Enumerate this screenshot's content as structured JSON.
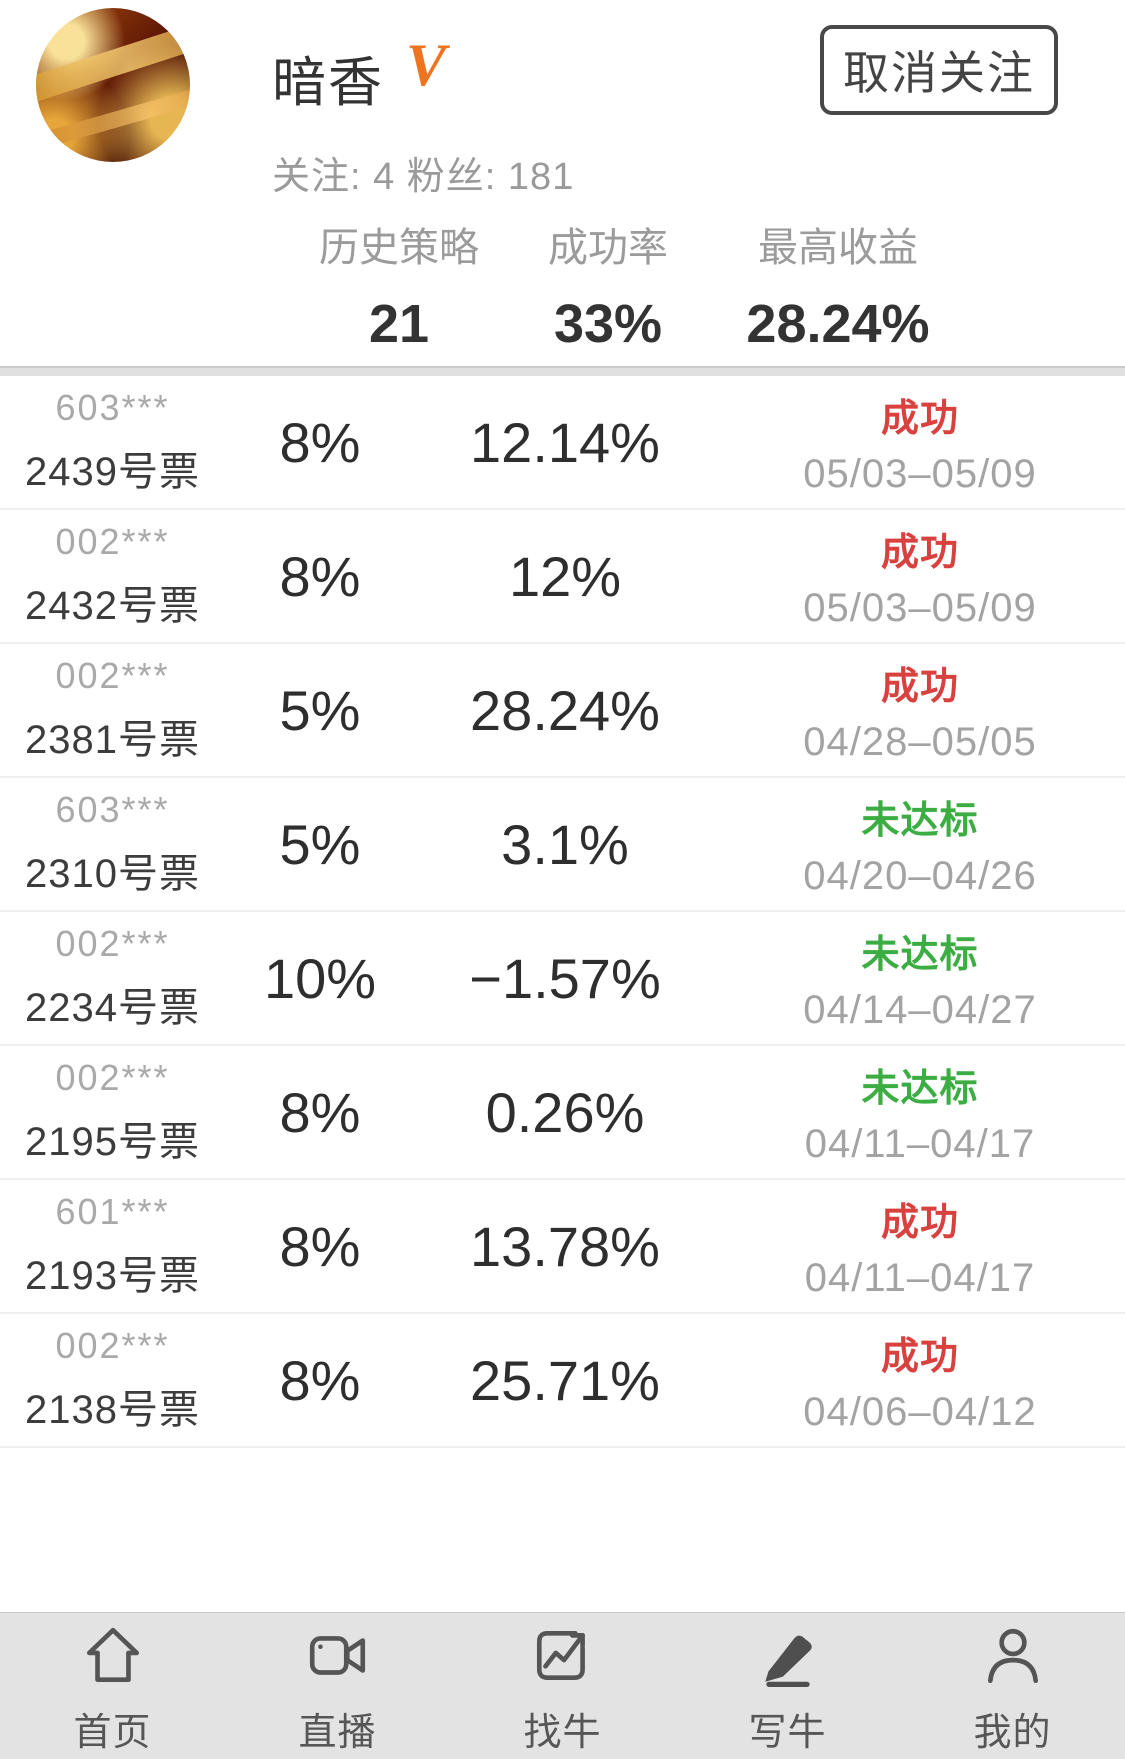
{
  "profile": {
    "name": "暗香",
    "badge": "V",
    "follow_stats": "关注: 4 粉丝: 181",
    "unfollow_button": "取消关注"
  },
  "stats": [
    {
      "label": "历史策略",
      "value": "21"
    },
    {
      "label": "成功率",
      "value": "33%"
    },
    {
      "label": "最高收益",
      "value": "28.24%"
    }
  ],
  "rows": [
    {
      "code": "603***",
      "ticket": "2439号票",
      "position": "8%",
      "return": "12.14%",
      "status": "成功",
      "status_type": "success",
      "dates": "05/03–05/09"
    },
    {
      "code": "002***",
      "ticket": "2432号票",
      "position": "8%",
      "return": "12%",
      "status": "成功",
      "status_type": "success",
      "dates": "05/03–05/09"
    },
    {
      "code": "002***",
      "ticket": "2381号票",
      "position": "5%",
      "return": "28.24%",
      "status": "成功",
      "status_type": "success",
      "dates": "04/28–05/05"
    },
    {
      "code": "603***",
      "ticket": "2310号票",
      "position": "5%",
      "return": "3.1%",
      "status": "未达标",
      "status_type": "fail",
      "dates": "04/20–04/26"
    },
    {
      "code": "002***",
      "ticket": "2234号票",
      "position": "10%",
      "return": "−1.57%",
      "status": "未达标",
      "status_type": "fail",
      "dates": "04/14–04/27"
    },
    {
      "code": "002***",
      "ticket": "2195号票",
      "position": "8%",
      "return": "0.26%",
      "status": "未达标",
      "status_type": "fail",
      "dates": "04/11–04/17"
    },
    {
      "code": "601***",
      "ticket": "2193号票",
      "position": "8%",
      "return": "13.78%",
      "status": "成功",
      "status_type": "success",
      "dates": "04/11–04/17"
    },
    {
      "code": "002***",
      "ticket": "2138号票",
      "position": "8%",
      "return": "25.71%",
      "status": "成功",
      "status_type": "success",
      "dates": "04/06–04/12"
    }
  ],
  "colors": {
    "success": "#d9413e",
    "fail": "#3bad42",
    "badge_orange": "#ee7420"
  },
  "nav": {
    "items": [
      {
        "label": "首页",
        "icon": "home-icon"
      },
      {
        "label": "直播",
        "icon": "video-camera-icon"
      },
      {
        "label": "找牛",
        "icon": "chart-arrow-icon"
      },
      {
        "label": "写牛",
        "icon": "pencil-icon"
      },
      {
        "label": "我的",
        "icon": "person-icon"
      }
    ]
  }
}
